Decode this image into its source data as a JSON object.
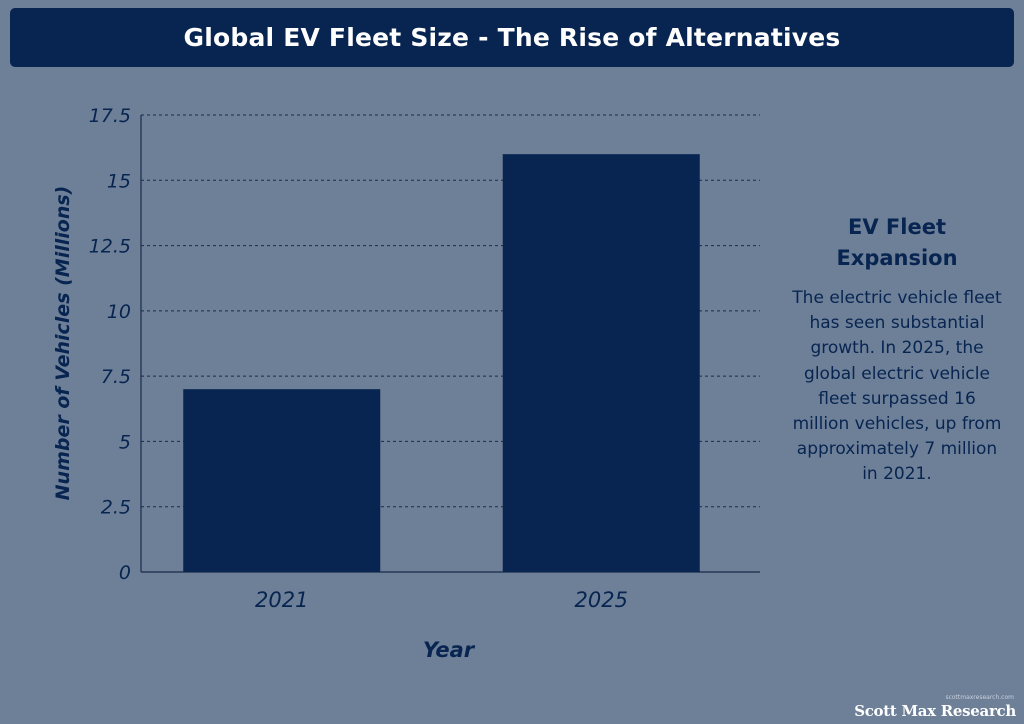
{
  "header": {
    "title": "Global EV Fleet Size - The Rise of Alternatives"
  },
  "chart_data": {
    "type": "bar",
    "title": "Global EV Fleet Size - The Rise of Alternatives",
    "categories": [
      "2021",
      "2025"
    ],
    "values": [
      7,
      16
    ],
    "xlabel": "Year",
    "ylabel": "Number of Vehicles (Millions)",
    "ylim": [
      0,
      17.5
    ],
    "yticks": [
      "0",
      "2.5",
      "5",
      "7.5",
      "10",
      "12.5",
      "15",
      "17.5"
    ],
    "grid": true,
    "colors": {
      "bar": "#072550",
      "text": "#072550",
      "grid": "#1a2b4a"
    }
  },
  "annotation": {
    "heading": "EV Fleet Expansion",
    "body": "The electric vehicle fleet has seen substantial growth. In 2025, the global electric vehicle fleet surpassed 16 million vehicles, up from approximately 7 million in 2021."
  },
  "branding": {
    "small_text": "scottmaxresearch.com",
    "name": "Scott Max Research"
  },
  "theme": {
    "background": "#6e7f98",
    "accent": "#072550"
  }
}
